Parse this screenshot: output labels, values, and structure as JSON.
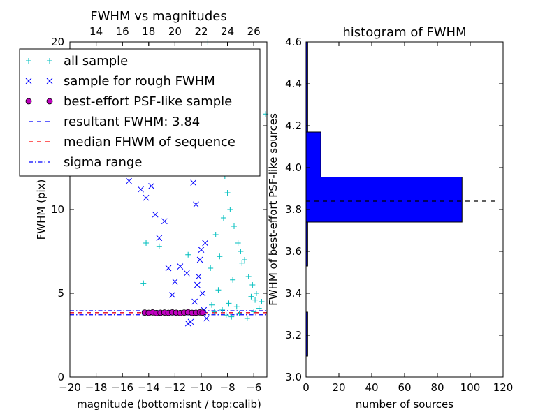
{
  "chart_data": [
    {
      "type": "scatter",
      "title": "FWHM vs magnitudes",
      "xlabel": "magnitude (bottom:isnt / top:calib)",
      "ylabel": "FWHM (pix)",
      "xlim": [
        -20,
        -5
      ],
      "ylim": [
        0,
        20
      ],
      "x_ticks": [
        -20,
        -18,
        -16,
        -14,
        -12,
        -10,
        -8,
        -6
      ],
      "x_tick_labels": [
        "−20",
        "−18",
        "−16",
        "−14",
        "−12",
        "−10",
        "−8",
        "−6"
      ],
      "y_ticks": [
        0,
        5,
        10,
        15,
        20
      ],
      "y_tick_labels": [
        "0",
        "5",
        "10",
        "15",
        "20"
      ],
      "top_axis": {
        "offset": 32.0,
        "ticks": [
          14,
          16,
          18,
          20,
          22,
          24,
          26
        ],
        "tick_labels": [
          "14",
          "16",
          "18",
          "20",
          "22",
          "24",
          "26"
        ]
      },
      "legend": {
        "placement": "top-left",
        "entries": [
          {
            "label": "all sample",
            "marker": "plus",
            "color": "#00BFBF"
          },
          {
            "label": "sample for rough FWHM",
            "marker": "x",
            "color": "#0000FF"
          },
          {
            "label": "best-effort PSF-like sample",
            "marker": "circle",
            "color": "#BF00BF"
          },
          {
            "label": "resultant FWHM: 3.84",
            "marker": "dash",
            "color": "#0000FF"
          },
          {
            "label": "median FHWM of sequence",
            "marker": "dash",
            "color": "#FF0000"
          },
          {
            "label": "sigma range",
            "marker": "dashdot",
            "color": "#0000FF"
          }
        ]
      },
      "series": [
        {
          "name": "all sample",
          "marker": "plus",
          "color": "#00BFBF",
          "x": [
            -14.4,
            -14.2,
            -13.2,
            -11.0,
            -9.5,
            -9.1,
            -8.8,
            -8.5,
            -8.2,
            -8.0,
            -7.8,
            -7.5,
            -7.2,
            -7.0,
            -6.7,
            -6.4,
            -6.1,
            -5.8,
            -5.4,
            -5.1,
            -8.3,
            -8.9,
            -9.3,
            -7.6,
            -6.9,
            -6.2,
            -8.6,
            -7.3,
            -5.9,
            -9.0,
            -8.1,
            -7.7,
            -6.5,
            -8.4,
            -9.2,
            -7.1,
            -6.0,
            -5.6,
            -8.7,
            -7.9
          ],
          "y": [
            5.6,
            8.0,
            7.8,
            7.3,
            20.0,
            17.0,
            18.0,
            14.0,
            12.0,
            11.0,
            10.0,
            9.0,
            8.0,
            7.5,
            7.0,
            6.0,
            5.5,
            5.0,
            4.5,
            15.7,
            9.5,
            8.5,
            6.5,
            5.8,
            6.8,
            4.8,
            7.2,
            4.2,
            4.6,
            3.9,
            3.7,
            3.6,
            3.5,
            4.0,
            4.3,
            3.8,
            3.9,
            4.1,
            5.2,
            4.4
          ]
        },
        {
          "name": "sample for rough FWHM",
          "marker": "x",
          "color": "#0000FF",
          "x": [
            -15.5,
            -14.6,
            -14.2,
            -13.8,
            -13.5,
            -13.2,
            -12.8,
            -12.5,
            -12.0,
            -11.6,
            -11.1,
            -11.0,
            -10.8,
            -10.5,
            -10.3,
            -10.2,
            -10.0,
            -9.9,
            -9.8,
            -9.6,
            -10.6,
            -10.4,
            -10.1,
            -9.7,
            -12.2,
            -11.3
          ],
          "y": [
            11.7,
            11.2,
            10.7,
            11.4,
            9.7,
            8.3,
            9.3,
            6.5,
            5.7,
            6.6,
            6.2,
            3.2,
            3.3,
            4.5,
            5.5,
            6.0,
            7.6,
            5.0,
            4.0,
            3.5,
            11.6,
            10.3,
            7.0,
            8.0,
            4.9,
            12.2
          ]
        },
        {
          "name": "best-effort PSF-like sample",
          "marker": "circle",
          "color": "#BF00BF",
          "x": [
            -14.3,
            -14.0,
            -13.7,
            -13.4,
            -13.1,
            -12.8,
            -12.5,
            -12.2,
            -11.9,
            -11.6,
            -11.3,
            -11.0,
            -10.7,
            -10.4,
            -10.1,
            -9.9
          ],
          "y": [
            3.85,
            3.83,
            3.86,
            3.82,
            3.84,
            3.85,
            3.83,
            3.86,
            3.84,
            3.82,
            3.85,
            3.87,
            3.83,
            3.84,
            3.86,
            3.85
          ]
        }
      ],
      "reference_lines": [
        {
          "name": "resultant FWHM",
          "y": 3.84,
          "color": "#0000FF",
          "style": "dash"
        },
        {
          "name": "median FHWM of sequence",
          "y": 3.84,
          "color": "#FF0000",
          "style": "dash"
        },
        {
          "name": "sigma range",
          "y": 3.96,
          "color": "#0000FF",
          "style": "dashdot"
        },
        {
          "name": "sigma range",
          "y": 3.72,
          "color": "#0000FF",
          "style": "dashdot"
        }
      ]
    },
    {
      "type": "bar",
      "orientation": "horizontal",
      "title": "histogram of FWHM",
      "xlabel": "number of sources",
      "ylabel": "FWHM of best-effort PSF-like sources",
      "xlim": [
        0,
        120
      ],
      "ylim": [
        3.0,
        4.6
      ],
      "x_ticks": [
        0,
        20,
        40,
        60,
        80,
        100,
        120
      ],
      "x_tick_labels": [
        "0",
        "20",
        "40",
        "60",
        "80",
        "100",
        "120"
      ],
      "y_ticks": [
        3.0,
        3.2,
        3.4,
        3.6,
        3.8,
        4.0,
        4.2,
        4.4,
        4.6
      ],
      "y_tick_labels": [
        "3.0",
        "3.2",
        "3.4",
        "3.6",
        "3.8",
        "4.0",
        "4.2",
        "4.4",
        "4.6"
      ],
      "bar_color": "#0000FF",
      "bins": [
        {
          "y0": 3.1,
          "y1": 3.31,
          "count": 1
        },
        {
          "y0": 3.53,
          "y1": 3.74,
          "count": 1
        },
        {
          "y0": 3.74,
          "y1": 3.955,
          "count": 95
        },
        {
          "y0": 3.955,
          "y1": 4.17,
          "count": 9
        },
        {
          "y0": 4.17,
          "y1": 4.385,
          "count": 1
        },
        {
          "y0": 4.385,
          "y1": 4.6,
          "count": 1
        }
      ],
      "reference_line": {
        "y": 3.84,
        "x_end": 115,
        "color": "#000000",
        "style": "dash"
      }
    }
  ]
}
